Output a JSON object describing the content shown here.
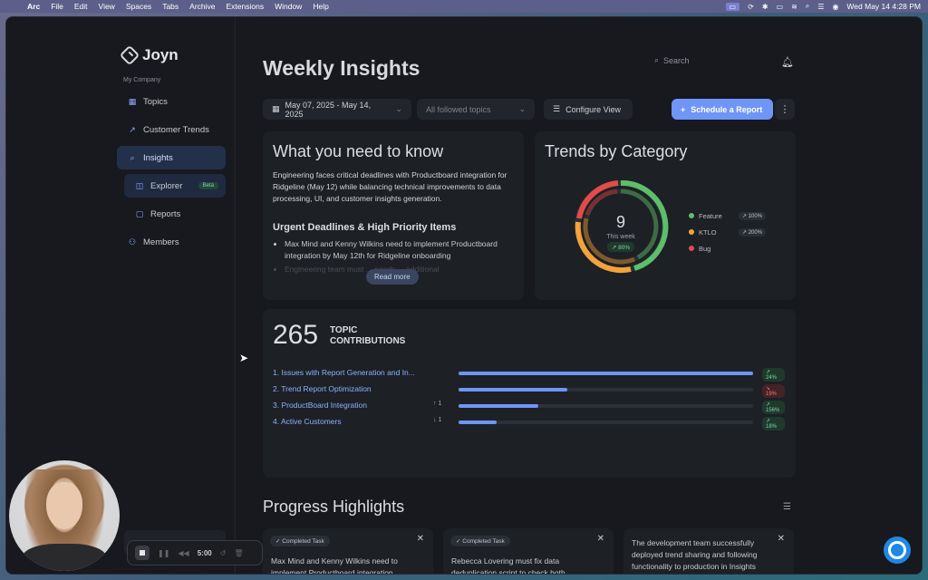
{
  "menubar": {
    "app": "Arc",
    "items": [
      "File",
      "Edit",
      "View",
      "Spaces",
      "Tabs",
      "Archive",
      "Extensions",
      "Window",
      "Help"
    ],
    "clock": "Wed May 14  4:28 PM"
  },
  "sidebar": {
    "brand": "Joyn",
    "company": "My Company",
    "items": [
      {
        "label": "Topics",
        "icon": "grid-icon"
      },
      {
        "label": "Customer Trends",
        "icon": "trend-icon"
      },
      {
        "label": "Insights",
        "icon": "search-icon"
      },
      {
        "label": "Explorer",
        "icon": "explorer-icon",
        "badge": "Beta"
      },
      {
        "label": "Reports",
        "icon": "report-icon"
      },
      {
        "label": "Members",
        "icon": "members-icon"
      }
    ]
  },
  "header": {
    "title": "Weekly Insights",
    "search_placeholder": "Search"
  },
  "toolbar": {
    "date_range": "May 07, 2025 - May 14, 2025",
    "topics_filter": "All followed topics",
    "configure_label": "Configure View",
    "schedule_label": "Schedule a Report"
  },
  "what_you_need": {
    "title": "What you need to know",
    "summary": "Engineering faces critical deadlines with Productboard integration for Ridgeline (May 12) while balancing technical improvements to data processing, UI, and customer insights generation.",
    "subheading": "Urgent Deadlines & High Priority Items",
    "bullets": [
      "Max Mind and Kenny Wilkins need to implement Productboard integration by May 12th for Ridgeline onboarding",
      "Engineering team must ... needs ... additional"
    ],
    "read_more": "Read more"
  },
  "trends": {
    "title": "Trends by Category",
    "center_value": "9",
    "center_label": "This week",
    "center_change": "80%",
    "legend": [
      {
        "name": "Feature",
        "change": "100%",
        "color": "#5cbf6a"
      },
      {
        "name": "KTLO",
        "change": "200%",
        "color": "#f2a33a"
      },
      {
        "name": "Bug",
        "change": "",
        "color": "#e24b4b"
      }
    ],
    "colors": {
      "feature": "#5cbf6a",
      "ktlo": "#f2a33a",
      "bug": "#e24b4b"
    }
  },
  "contributions": {
    "count": "265",
    "label_line1": "TOPIC",
    "label_line2": "CONTRIBUTIONS",
    "rows": [
      {
        "name": "1. Issues with Report Generation and In...",
        "delta": "",
        "value": 1.0,
        "change": "24%",
        "dir": "up"
      },
      {
        "name": "2. Trend Report Optimization",
        "delta": "",
        "value": 0.37,
        "change": "19%",
        "dir": "down"
      },
      {
        "name": "3. ProductBoard Integration",
        "delta": "↑ 1",
        "value": 0.27,
        "change": "156%",
        "dir": "up"
      },
      {
        "name": "4. Active Customers",
        "delta": "↓ 1",
        "value": 0.13,
        "change": "18%",
        "dir": "up"
      }
    ]
  },
  "progress": {
    "title": "Progress Highlights",
    "cards": [
      {
        "badge": "Completed Task",
        "text": "Max Mind and Kenny Wilkins need to implement Productboard integration"
      },
      {
        "badge": "Completed Task",
        "text": "Rebecca Lovering must fix data deduplication script to check both"
      },
      {
        "badge": "",
        "text": "The development team successfully deployed trend sharing and following functionality to production in Insights"
      }
    ]
  },
  "recorder": {
    "time": "5:00"
  }
}
